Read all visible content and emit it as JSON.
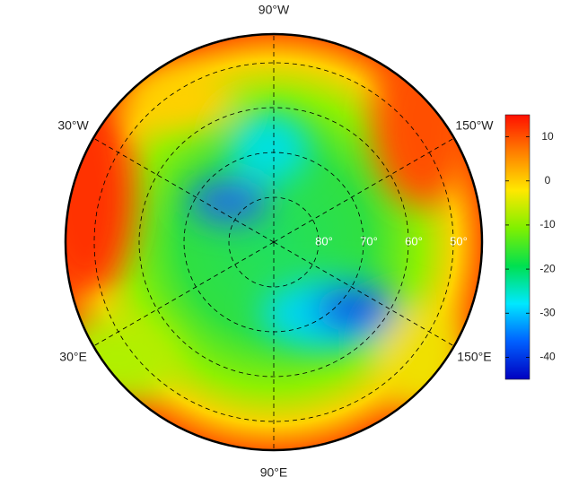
{
  "map": {
    "meridians": [
      {
        "value": -90,
        "label": "90°W"
      },
      {
        "value": -30,
        "label": "30°W"
      },
      {
        "value": -150,
        "label": "150°W"
      },
      {
        "value": 30,
        "label": "30°E"
      },
      {
        "value": 150,
        "label": "150°E"
      },
      {
        "value": 90,
        "label": "90°E"
      }
    ],
    "parallels": [
      {
        "value": 80,
        "label": "80°"
      },
      {
        "value": 70,
        "label": "70°"
      },
      {
        "value": 60,
        "label": "60°"
      },
      {
        "value": 50,
        "label": "50°"
      }
    ],
    "colorbar": {
      "lim": [
        -45,
        15
      ],
      "ticks": [
        10,
        0,
        -10,
        -20,
        -30,
        -40
      ],
      "colors": [
        "#0000c0",
        "#0060ff",
        "#00e8ff",
        "#00e050",
        "#80f000",
        "#ffe800",
        "#ff8000",
        "#ff1000"
      ]
    }
  }
}
